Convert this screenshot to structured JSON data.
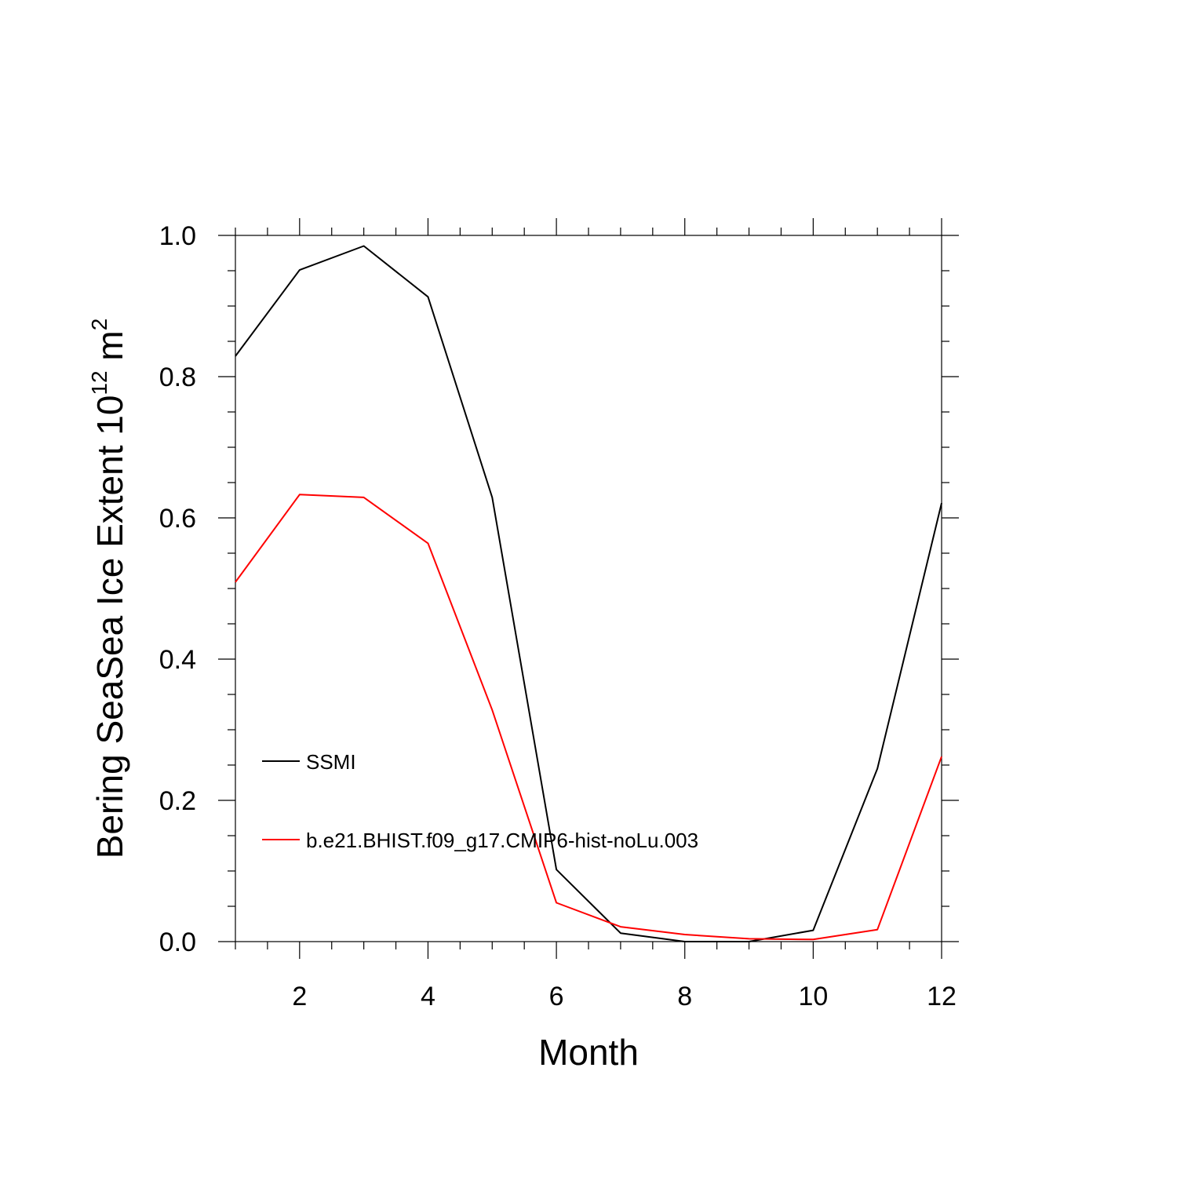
{
  "chart_data": {
    "type": "line",
    "xlabel": "Month",
    "ylabel_main": "Bering SeaSea Ice Extent 10",
    "ylabel_exp": "12",
    "ylabel_unit": " m",
    "ylabel_unit_exp": "2",
    "xlim": [
      1,
      12
    ],
    "ylim": [
      0,
      1
    ],
    "x_ticks": [
      2,
      4,
      6,
      8,
      10,
      12
    ],
    "y_ticks": [
      0.0,
      0.2,
      0.4,
      0.6,
      0.8,
      1.0
    ],
    "y_tick_labels": [
      "0.0",
      "0.2",
      "0.4",
      "0.6",
      "0.8",
      "1.0"
    ],
    "x": [
      1,
      2,
      3,
      4,
      5,
      6,
      7,
      8,
      9,
      10,
      11,
      12
    ],
    "legend_position": "lower-left",
    "series": [
      {
        "name": "SSMI",
        "color": "#000000",
        "values": [
          0.829,
          0.951,
          0.985,
          0.913,
          0.629,
          0.102,
          0.012,
          0.0,
          0.0,
          0.016,
          0.245,
          0.621
        ]
      },
      {
        "name": "b.e21.BHIST.f09_g17.CMIP6-hist-noLu.003",
        "color": "#ff0000",
        "values": [
          0.509,
          0.633,
          0.629,
          0.564,
          0.328,
          0.055,
          0.021,
          0.01,
          0.004,
          0.003,
          0.017,
          0.262
        ]
      }
    ]
  }
}
